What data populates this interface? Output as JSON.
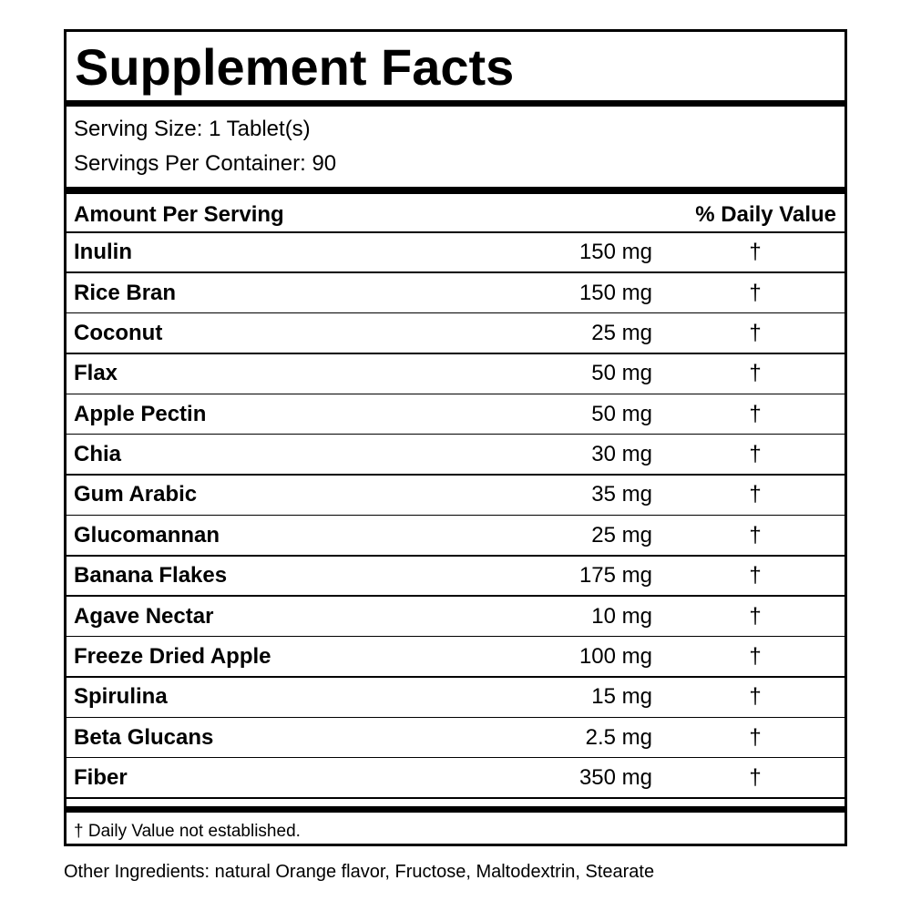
{
  "title": "Supplement Facts",
  "serving_size": "Serving Size: 1 Tablet(s)",
  "servings_per_container": "Servings Per Container: 90",
  "table": {
    "header": [
      "Amount Per Serving",
      "% Daily Value"
    ],
    "rows": [
      [
        "Inulin",
        "150 mg",
        "†"
      ],
      [
        "Rice Bran",
        "150 mg",
        "†"
      ],
      [
        "Coconut",
        "25 mg",
        "†"
      ],
      [
        "Flax",
        "50 mg",
        "†"
      ],
      [
        "Apple Pectin",
        "50 mg",
        "†"
      ],
      [
        "Chia",
        "30 mg",
        "†"
      ],
      [
        "Gum Arabic",
        "35 mg",
        "†"
      ],
      [
        "Glucomannan",
        "25 mg",
        "†"
      ],
      [
        "Banana Flakes",
        "175 mg",
        "†"
      ],
      [
        "Agave Nectar",
        "10 mg",
        "†"
      ],
      [
        "Freeze Dried Apple",
        "100 mg",
        "†"
      ],
      [
        "Spirulina",
        "15 mg",
        "†"
      ],
      [
        "Beta Glucans",
        "2.5 mg",
        "†"
      ],
      [
        "Fiber",
        "350 mg",
        "†"
      ]
    ]
  },
  "footnote": "† Daily Value not established.",
  "other_ingredients": "Other Ingredients: natural Orange flavor, Fructose, Maltodextrin, Stearate"
}
